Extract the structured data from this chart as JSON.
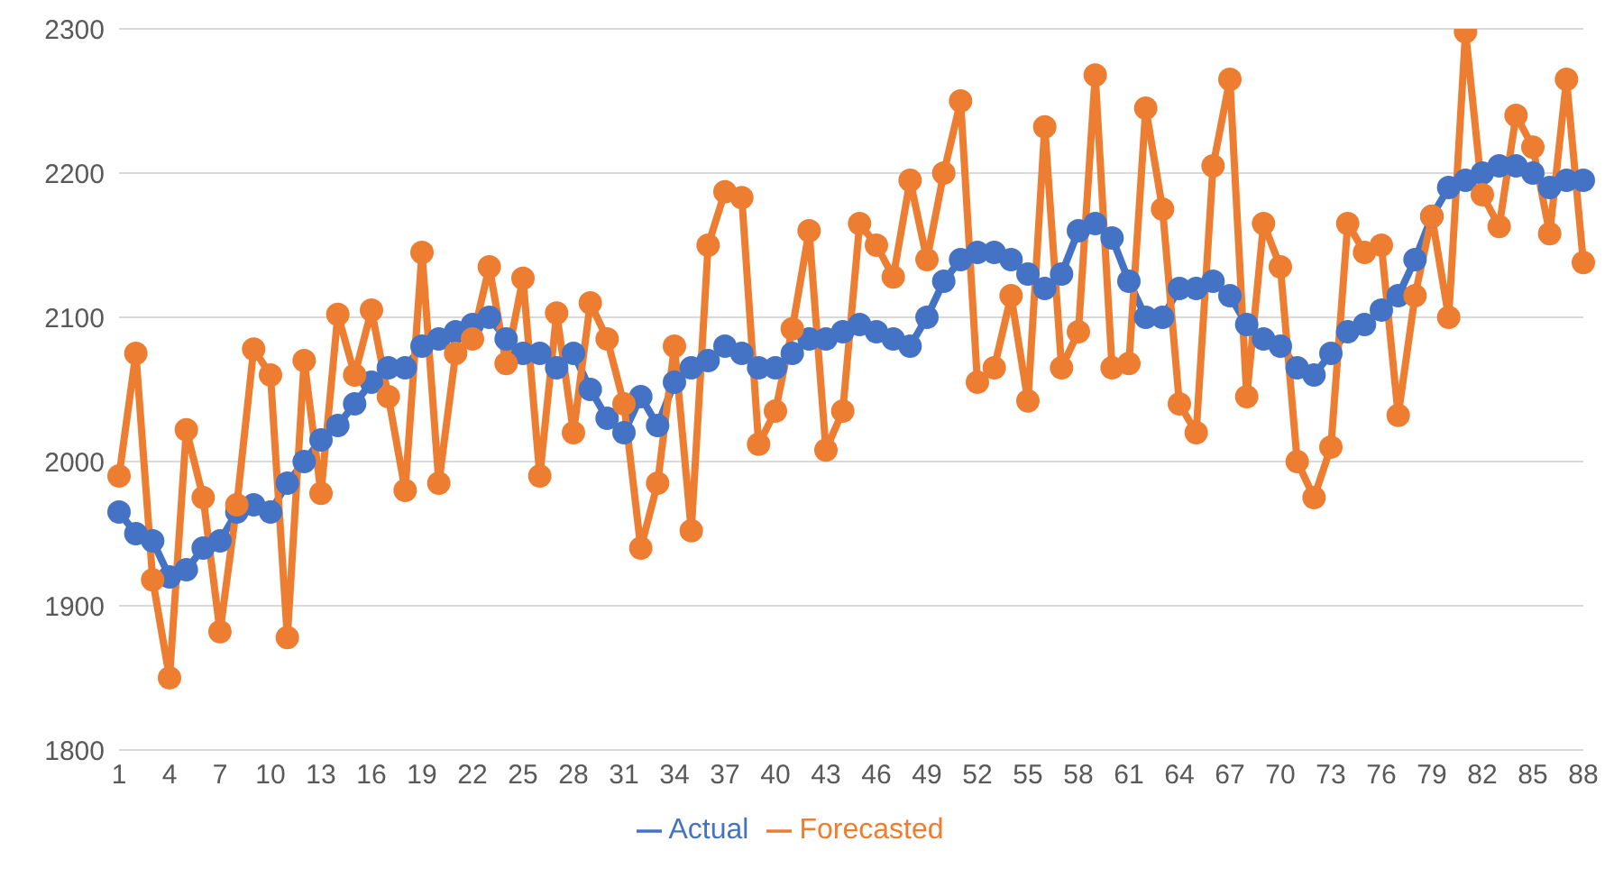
{
  "chart_data": {
    "type": "line",
    "categories": [
      "1",
      null,
      null,
      "4",
      null,
      null,
      "7",
      null,
      null,
      "10",
      null,
      null,
      "13",
      null,
      null,
      "16",
      null,
      null,
      "19",
      null,
      null,
      "22",
      null,
      null,
      "25",
      null,
      null,
      "28",
      null,
      null,
      "31",
      null,
      null,
      "34",
      null,
      null,
      "37",
      null,
      null,
      "40",
      null,
      null,
      "43",
      null,
      null,
      "46",
      null,
      null,
      "49",
      null,
      null,
      "52",
      null,
      null,
      "55",
      null,
      null,
      "58",
      null,
      null,
      "61",
      null,
      null,
      "64",
      null,
      null,
      "67",
      null,
      null,
      "70",
      null,
      null,
      "73",
      null,
      null,
      "76",
      null,
      null,
      "79",
      null,
      null,
      "82",
      null,
      null,
      "85",
      null,
      null,
      "88"
    ],
    "series": [
      {
        "name": "Actual",
        "color": "#4472c4",
        "values": [
          1965,
          1950,
          1945,
          1920,
          1925,
          1940,
          1945,
          1965,
          1970,
          1965,
          1985,
          2000,
          2015,
          2025,
          2040,
          2055,
          2065,
          2065,
          2080,
          2085,
          2090,
          2095,
          2100,
          2085,
          2075,
          2075,
          2065,
          2075,
          2050,
          2030,
          2020,
          2045,
          2025,
          2055,
          2065,
          2070,
          2080,
          2075,
          2065,
          2065,
          2075,
          2085,
          2085,
          2090,
          2095,
          2090,
          2085,
          2080,
          2100,
          2125,
          2140,
          2145,
          2145,
          2140,
          2130,
          2120,
          2130,
          2160,
          2165,
          2155,
          2125,
          2100,
          2100,
          2120,
          2120,
          2125,
          2115,
          2095,
          2085,
          2080,
          2065,
          2060,
          2075,
          2090,
          2095,
          2105,
          2115,
          2140,
          2170,
          2190,
          2195,
          2200,
          2205,
          2205,
          2200,
          2190,
          2195,
          2195
        ]
      },
      {
        "name": "Forecasted",
        "color": "#ed7d31",
        "values": [
          1990,
          2075,
          1918,
          1850,
          2022,
          1975,
          1882,
          1970,
          2078,
          2060,
          1878,
          2070,
          1978,
          2102,
          2060,
          2105,
          2045,
          1980,
          2145,
          1985,
          2075,
          2085,
          2135,
          2068,
          2127,
          1990,
          2103,
          2020,
          2110,
          2085,
          2040,
          1940,
          1985,
          2080,
          1952,
          2150,
          2187,
          2183,
          2012,
          2035,
          2092,
          2160,
          2008,
          2035,
          2165,
          2150,
          2128,
          2195,
          2140,
          2200,
          2250,
          2055,
          2065,
          2115,
          2042,
          2232,
          2065,
          2090,
          2268,
          2065,
          2068,
          2245,
          2175,
          2040,
          2020,
          2205,
          2265,
          2045,
          2165,
          2135,
          2000,
          1975,
          2010,
          2165,
          2145,
          2150,
          2032,
          2115,
          2170,
          2100,
          2298,
          2185,
          2163,
          2240,
          2218,
          2158,
          2265,
          2138
        ]
      }
    ],
    "ylim": [
      1800,
      2300
    ],
    "yticks": [
      1800,
      1900,
      2000,
      2100,
      2200,
      2300
    ],
    "grid": "y",
    "legend": "bottom",
    "marker": "circle",
    "line_style": "solid"
  }
}
